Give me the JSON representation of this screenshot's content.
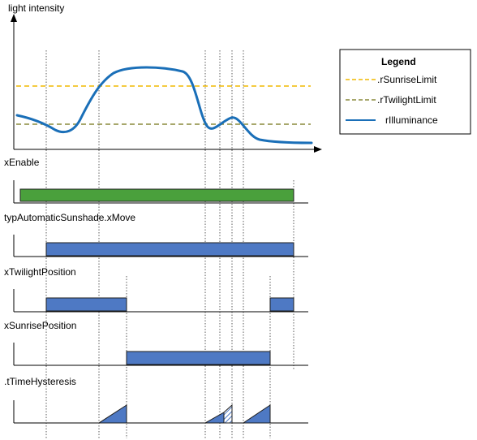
{
  "chart": {
    "y_axis_label": "light intensity"
  },
  "signals": {
    "enable": "xEnable",
    "move": "typAutomaticSunshade.xMove",
    "twilight": "xTwilightPosition",
    "sunrise": "xSunrisePosition",
    "hysteresis": ".tTimeHysteresis"
  },
  "legend": {
    "title": "Legend",
    "items": [
      {
        "label": ".rSunriseLimit",
        "color": "#f0b800",
        "style": "dashed"
      },
      {
        "label": ".rTwilightLimit",
        "color": "#8a8a3c",
        "style": "dashed"
      },
      {
        "label": "rIlluminance",
        "color": "#1a6fb8",
        "style": "solid"
      }
    ]
  },
  "colors": {
    "enable_bar": "#4aa03c",
    "signal_bar": "#4e79c4",
    "illuminance": "#1a6fb8",
    "sunrise_limit": "#f0b800",
    "twilight_limit": "#8a8a3c"
  }
}
